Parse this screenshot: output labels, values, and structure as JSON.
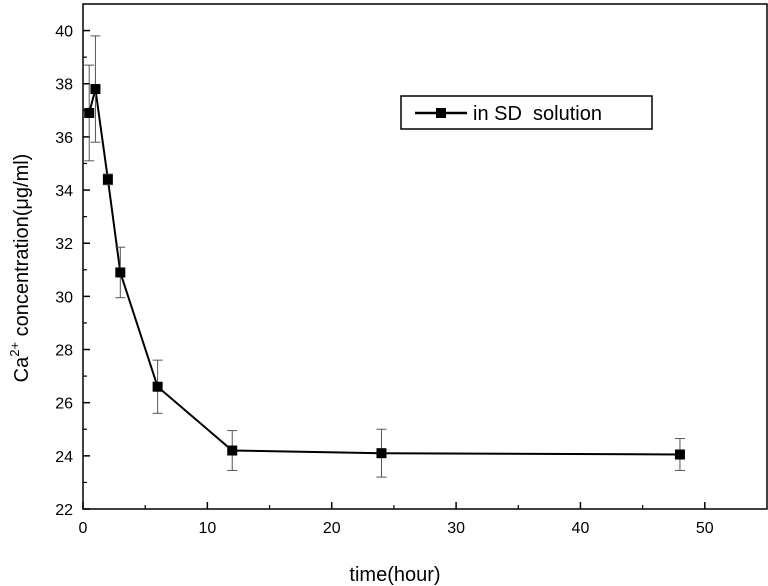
{
  "chart_data": {
    "type": "line",
    "xlabel": "time(hour)",
    "ylabel_main": "Ca",
    "ylabel_sup": "2+",
    "ylabel_rest": " concentration(μg/ml)",
    "xlim": [
      0,
      55
    ],
    "ylim": [
      22,
      41
    ],
    "xticks": [
      0,
      10,
      20,
      30,
      40,
      50
    ],
    "yticks": [
      22,
      24,
      26,
      28,
      30,
      32,
      34,
      36,
      38,
      40
    ],
    "grid": false,
    "legend_position": "top-right",
    "series": [
      {
        "name": "in SD  solution",
        "color": "#000000",
        "marker": "square",
        "x": [
          0.5,
          1,
          2,
          3,
          6,
          12,
          24,
          48
        ],
        "y": [
          36.9,
          37.8,
          34.4,
          30.9,
          26.6,
          24.2,
          24.1,
          24.05
        ],
        "err": [
          1.8,
          2.0,
          0.2,
          0.95,
          1.0,
          0.75,
          0.9,
          0.6
        ]
      }
    ]
  }
}
